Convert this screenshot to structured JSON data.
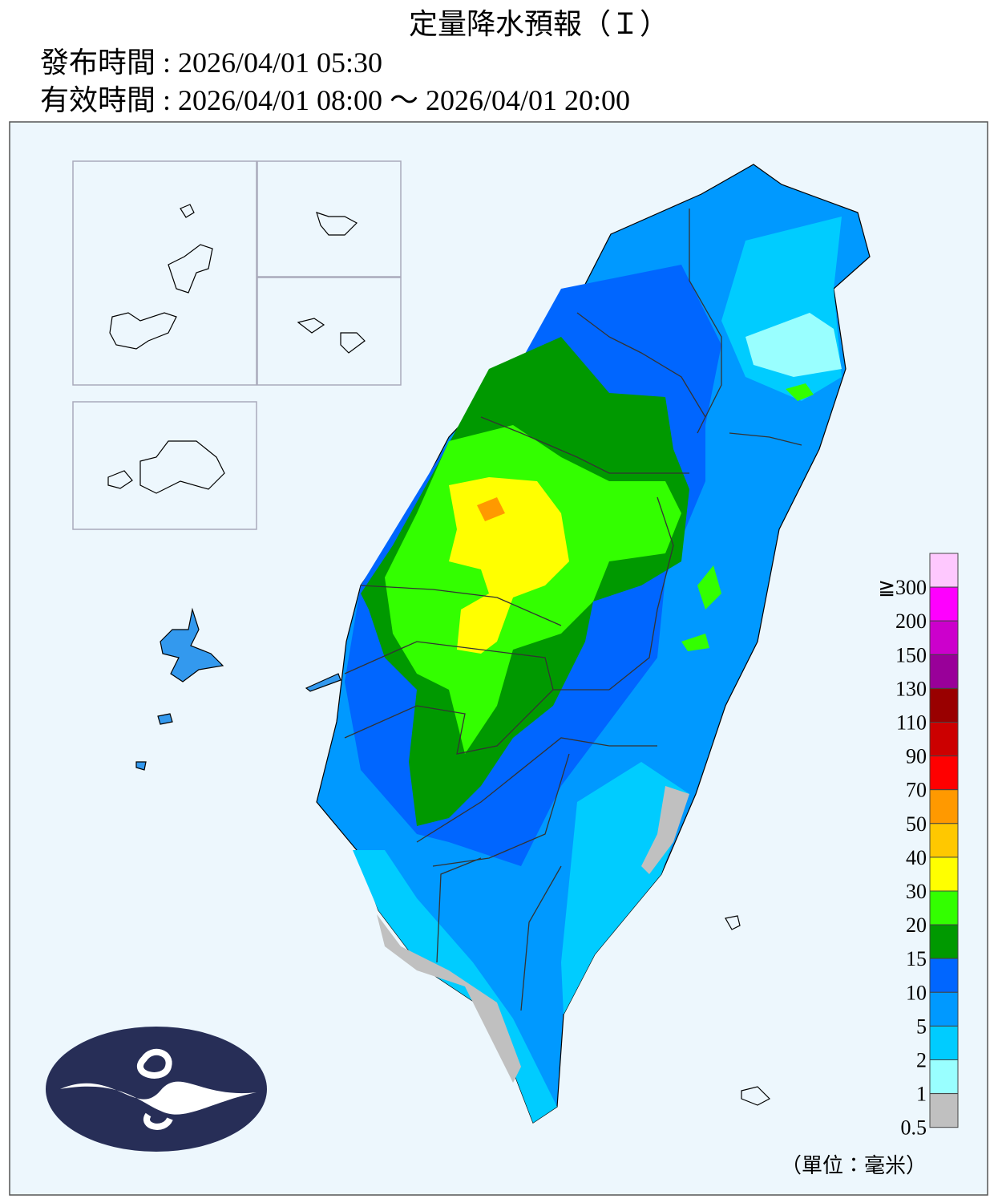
{
  "header": {
    "title": "定量降水預報（Ｉ）",
    "issued": "發布時間 : 2026/04/01 05:30",
    "valid": "有效時間 : 2026/04/01 08:00 ～ 2026/04/01 20:00"
  },
  "legend": {
    "unit": "（單位：毫米）",
    "items": [
      {
        "label": "≧300",
        "color": "#fec8fe"
      },
      {
        "label": "200",
        "color": "#fe00fe"
      },
      {
        "label": "150",
        "color": "#cc00cc"
      },
      {
        "label": "130",
        "color": "#990099"
      },
      {
        "label": "110",
        "color": "#990000"
      },
      {
        "label": "90",
        "color": "#cc0000"
      },
      {
        "label": "70",
        "color": "#ff0000"
      },
      {
        "label": "50",
        "color": "#ff9900"
      },
      {
        "label": "40",
        "color": "#ffc800"
      },
      {
        "label": "30",
        "color": "#ffff00"
      },
      {
        "label": "20",
        "color": "#33ff00"
      },
      {
        "label": "15",
        "color": "#009900"
      },
      {
        "label": "10",
        "color": "#0066ff"
      },
      {
        "label": "5",
        "color": "#0099ff"
      },
      {
        "label": "2",
        "color": "#00ccff"
      },
      {
        "label": "1",
        "color": "#99ffff"
      },
      {
        "label": "0.5",
        "color": "#c0c0c0"
      }
    ]
  }
}
